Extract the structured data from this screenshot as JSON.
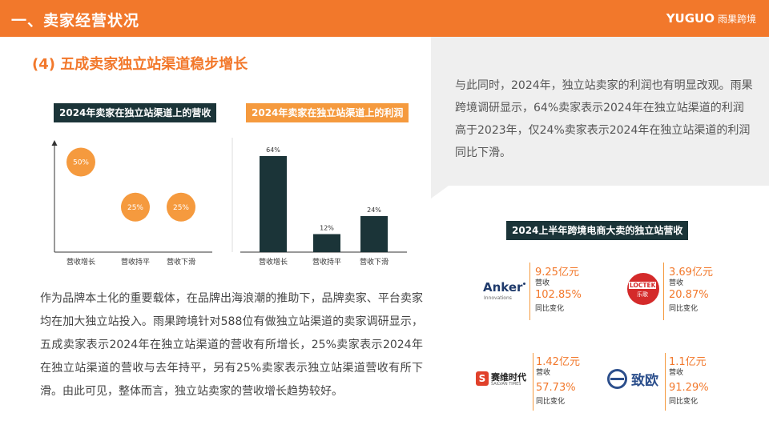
{
  "header": {
    "title": "一、卖家经营状况",
    "logo_word": "YUGUO",
    "logo_cn": "雨果跨境"
  },
  "section_title": "(4) 五成卖家独立站渠道稳步增长",
  "panel_text": "与此同时，2024年，独立站卖家的利润也有明显改观。雨果跨境调研显示，64%卖家表示2024年在独立站渠道的利润高于2023年，仅24%卖家表示2024年在独立站渠道的利润同比下滑。",
  "body_text": "作为品牌本土化的重要载体，在品牌出海浪潮的推助下，品牌卖家、平台卖家均在加大独立站投入。雨果跨境针对588位有做独立站渠道的卖家调研显示，五成卖家表示2024年在独立站渠道的营收有所增长，25%卖家表示2024年在独立站渠道的营收与去年持平，另有25%卖家表示独立站渠道营收有所下滑。由此可见，整体而言，独立站卖家的营收增长趋势较好。",
  "colors": {
    "orange": "#f2782b",
    "bubble": "#f59a3e",
    "dark": "#1b3438"
  },
  "chart_data": [
    {
      "type": "scatter",
      "title": "2024年卖家在独立站渠道上的营收",
      "categories": [
        "营收增长",
        "营收持平",
        "营收下滑"
      ],
      "values": [
        50,
        25,
        25
      ],
      "labels": [
        "50%",
        "25%",
        "25%"
      ]
    },
    {
      "type": "bar",
      "title": "2024年卖家在独立站渠道上的利润",
      "categories": [
        "营收增长",
        "营收持平",
        "营收下滑"
      ],
      "values": [
        64,
        12,
        24
      ],
      "labels": [
        "64%",
        "12%",
        "24%"
      ]
    }
  ],
  "brands_title": "2024上半年跨境电商大卖的独立站营收",
  "brands": [
    {
      "name": "Anker",
      "sub": "Innovations",
      "revenue": "9.25亿元",
      "revenue_caption": "营收",
      "growth": "102.85%",
      "growth_caption": "同比变化"
    },
    {
      "name": "LOCTEK",
      "sub": "乐歌",
      "revenue": "3.69亿元",
      "revenue_caption": "营收",
      "growth": "20.87%",
      "growth_caption": "同比变化"
    },
    {
      "name": "赛维时代",
      "sub": "SAILVAN TIMES",
      "revenue": "1.42亿元",
      "revenue_caption": "营收",
      "growth": "57.73%",
      "growth_caption": "同比变化"
    },
    {
      "name": "致欧",
      "sub": "",
      "revenue": "1.1亿元",
      "revenue_caption": "营收",
      "growth": "91.29%",
      "growth_caption": "同比变化"
    }
  ]
}
